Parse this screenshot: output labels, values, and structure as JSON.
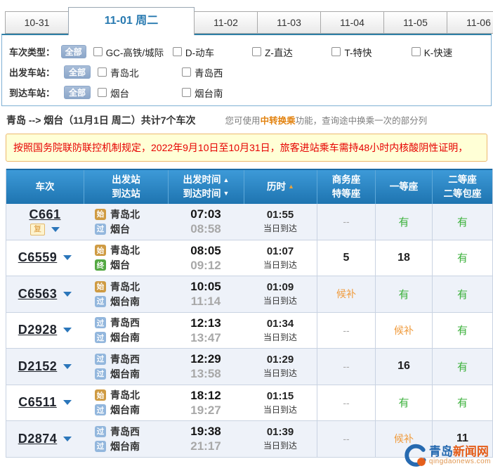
{
  "tabs": {
    "items": [
      {
        "label": "10-31",
        "active": false
      },
      {
        "label": "11-01 周二",
        "active": true
      },
      {
        "label": "11-02",
        "active": false
      },
      {
        "label": "11-03",
        "active": false
      },
      {
        "label": "11-04",
        "active": false
      },
      {
        "label": "11-05",
        "active": false
      },
      {
        "label": "11-06",
        "active": false
      }
    ]
  },
  "filters": {
    "rows": [
      {
        "label": "车次类型：",
        "all_button": "全部",
        "options": [
          "GC-高铁/城际",
          "D-动车",
          "Z-直达",
          "T-特快",
          "K-快速"
        ]
      },
      {
        "label": "出发车站：",
        "all_button": "全部",
        "options": [
          "青岛北",
          "青岛西"
        ]
      },
      {
        "label": "到达车站：",
        "all_button": "全部",
        "options": [
          "烟台",
          "烟台南"
        ]
      }
    ]
  },
  "summary": {
    "route": "青岛 --> 烟台（11月1日 周二）共计7个车次",
    "tip_prefix": "您可使用",
    "tip_highlight": "中转换乘",
    "tip_suffix": "功能，查询途中换乘一次的部分列"
  },
  "notice": {
    "text": "按照国务院联防联控机制规定，2022年9月10日至10月31日，旅客进站乘车需持48小时内核酸阴性证明，"
  },
  "table": {
    "headers": {
      "train": "车次",
      "station_dep": "出发站",
      "station_arr": "到达站",
      "time_dep": "出发时间",
      "time_arr": "到达时间",
      "duration": "历时",
      "seat1a": "商务座",
      "seat1b": "特等座",
      "seat2": "一等座",
      "seat3a": "二等座",
      "seat3b": "二等包座"
    },
    "rows": [
      {
        "train": "C661",
        "extra_badge": "复",
        "dep_badge": "始",
        "dep": "青岛北",
        "arr_badge": "过",
        "arr": "烟台",
        "dep_time": "07:03",
        "arr_time": "08:58",
        "duration": "01:55",
        "arrive_note": "当日到达",
        "seats": [
          {
            "t": "none",
            "v": "--"
          },
          {
            "t": "avail",
            "v": "有"
          },
          {
            "t": "avail",
            "v": "有"
          }
        ]
      },
      {
        "train": "C6559",
        "dep_badge": "始",
        "dep": "青岛北",
        "arr_badge": "终",
        "arr": "烟台",
        "dep_time": "08:05",
        "arr_time": "09:12",
        "duration": "01:07",
        "arrive_note": "当日到达",
        "seats": [
          {
            "t": "count",
            "v": "5"
          },
          {
            "t": "count",
            "v": "18"
          },
          {
            "t": "avail",
            "v": "有"
          }
        ]
      },
      {
        "train": "C6563",
        "dep_badge": "始",
        "dep": "青岛北",
        "arr_badge": "过",
        "arr": "烟台南",
        "dep_time": "10:05",
        "arr_time": "11:14",
        "duration": "01:09",
        "arrive_note": "当日到达",
        "seats": [
          {
            "t": "waitlist",
            "v": "候补"
          },
          {
            "t": "avail",
            "v": "有"
          },
          {
            "t": "avail",
            "v": "有"
          }
        ]
      },
      {
        "train": "D2928",
        "dep_badge": "过",
        "dep": "青岛西",
        "arr_badge": "过",
        "arr": "烟台南",
        "dep_time": "12:13",
        "arr_time": "13:47",
        "duration": "01:34",
        "arrive_note": "当日到达",
        "seats": [
          {
            "t": "none",
            "v": "--"
          },
          {
            "t": "waitlist",
            "v": "候补"
          },
          {
            "t": "avail",
            "v": "有"
          }
        ]
      },
      {
        "train": "D2152",
        "dep_badge": "过",
        "dep": "青岛西",
        "arr_badge": "过",
        "arr": "烟台南",
        "dep_time": "12:29",
        "arr_time": "13:58",
        "duration": "01:29",
        "arrive_note": "当日到达",
        "seats": [
          {
            "t": "none",
            "v": "--"
          },
          {
            "t": "count",
            "v": "16"
          },
          {
            "t": "avail",
            "v": "有"
          }
        ]
      },
      {
        "train": "C6511",
        "dep_badge": "始",
        "dep": "青岛北",
        "arr_badge": "过",
        "arr": "烟台南",
        "dep_time": "18:12",
        "arr_time": "19:27",
        "duration": "01:15",
        "arrive_note": "当日到达",
        "seats": [
          {
            "t": "none",
            "v": "--"
          },
          {
            "t": "avail",
            "v": "有"
          },
          {
            "t": "avail",
            "v": "有"
          }
        ]
      },
      {
        "train": "D2874",
        "dep_badge": "过",
        "dep": "青岛西",
        "arr_badge": "过",
        "arr": "烟台南",
        "dep_time": "19:38",
        "arr_time": "21:17",
        "duration": "01:39",
        "arrive_note": "当日到达",
        "seats": [
          {
            "t": "none",
            "v": "--"
          },
          {
            "t": "waitlist",
            "v": "候补"
          },
          {
            "t": "count",
            "v": "11"
          }
        ]
      }
    ]
  },
  "watermark": {
    "site_blue": "青岛",
    "site_orange": "新闻网",
    "domain": "qingdaonews.com"
  },
  "colors": {
    "accent_blue": "#2779b0",
    "header_gradient_top": "#3d9ad8",
    "header_gradient_bottom": "#1e74b0",
    "row_alt": "#eef2f9",
    "avail_green": "#3cb13c",
    "waitlist_orange": "#f09b3c",
    "notice_red": "#e60000",
    "notice_bg": "#ffffd6",
    "badges": {
      "始": "#cf9b43",
      "过": "#93b7dd",
      "终": "#55a944"
    }
  }
}
